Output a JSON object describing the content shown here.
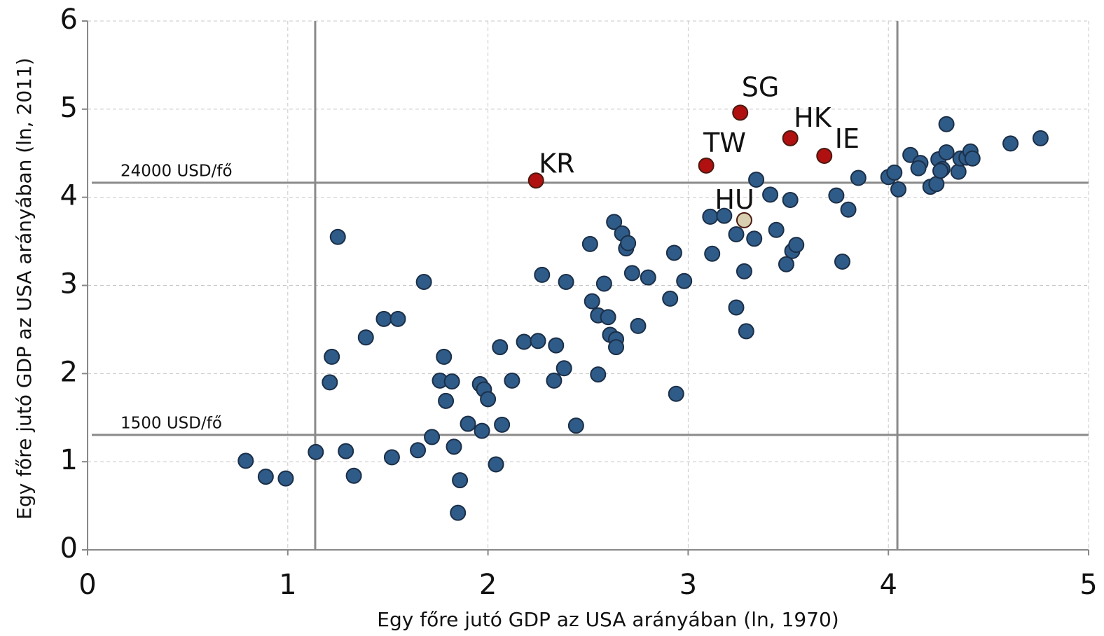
{
  "chart_data": {
    "type": "scatter",
    "x_label": "Egy főre jutó GDP az USA arányában (ln, 1970)",
    "y_label": "Egy főre jutó GDP az USA arányában (ln, 2011)",
    "xlim": [
      0,
      5
    ],
    "ylim": [
      0,
      6
    ],
    "xticks": [
      0,
      1,
      2,
      3,
      4,
      5
    ],
    "yticks": [
      0,
      1,
      2,
      3,
      4,
      5,
      6
    ],
    "grid": true,
    "color": "#2f5b88",
    "x": [
      0.79,
      0.89,
      0.99,
      1.14,
      1.29,
      1.33,
      1.25,
      1.22,
      1.21,
      1.39,
      1.48,
      1.55,
      1.52,
      1.68,
      1.65,
      1.72,
      1.78,
      1.76,
      1.82,
      1.79,
      1.83,
      1.86,
      1.85,
      1.9,
      1.96,
      1.98,
      2.0,
      1.97,
      2.04,
      2.06,
      2.07,
      2.12,
      2.18,
      2.25,
      2.27,
      2.34,
      2.33,
      2.38,
      2.39,
      2.44,
      2.51,
      2.52,
      2.55,
      2.55,
      2.58,
      2.6,
      2.61,
      2.64,
      2.64,
      2.63,
      2.67,
      2.69,
      2.7,
      2.72,
      2.75,
      2.8,
      2.91,
      2.93,
      2.94,
      2.98,
      3.11,
      3.12,
      3.18,
      3.24,
      3.24,
      3.28,
      3.29,
      3.33,
      3.34,
      3.41,
      3.44,
      3.51,
      3.52,
      3.54,
      3.49,
      3.74,
      3.8,
      3.77,
      3.85,
      4.0,
      4.03,
      4.05,
      4.11,
      4.16,
      4.15,
      4.21,
      4.24,
      4.25,
      4.27,
      4.26,
      4.29,
      4.29,
      4.35,
      4.36,
      4.39,
      4.41,
      4.42,
      4.61,
      4.76
    ],
    "values": [
      1.01,
      0.83,
      0.81,
      1.11,
      1.12,
      0.84,
      3.55,
      2.19,
      1.9,
      2.41,
      2.62,
      2.62,
      1.05,
      3.04,
      1.13,
      1.28,
      2.19,
      1.92,
      1.91,
      1.69,
      1.17,
      0.79,
      0.42,
      1.43,
      1.88,
      1.82,
      1.71,
      1.35,
      0.97,
      2.3,
      1.42,
      1.92,
      2.36,
      2.37,
      3.12,
      2.32,
      1.92,
      2.06,
      3.04,
      1.41,
      3.47,
      2.82,
      2.66,
      1.99,
      3.02,
      2.64,
      2.44,
      2.39,
      2.3,
      3.72,
      3.59,
      3.42,
      3.48,
      3.14,
      2.54,
      3.09,
      2.85,
      3.37,
      1.77,
      3.05,
      3.78,
      3.36,
      3.79,
      3.58,
      2.75,
      3.16,
      2.48,
      3.53,
      4.2,
      4.03,
      3.63,
      3.97,
      3.39,
      3.46,
      3.24,
      4.02,
      3.86,
      3.27,
      4.22,
      4.23,
      4.28,
      4.09,
      4.48,
      4.39,
      4.33,
      4.12,
      4.15,
      4.43,
      4.32,
      4.3,
      4.51,
      4.83,
      4.29,
      4.44,
      4.45,
      4.52,
      4.44,
      4.61,
      4.67
    ],
    "labeled_points": [
      {
        "label": "KR",
        "x": 2.24,
        "y": 4.19,
        "color": "#b01010"
      },
      {
        "label": "TW",
        "x": 3.09,
        "y": 4.36,
        "color": "#b01010"
      },
      {
        "label": "SG",
        "x": 3.26,
        "y": 4.96,
        "color": "#b01010"
      },
      {
        "label": "HK",
        "x": 3.51,
        "y": 4.67,
        "color": "#b01010"
      },
      {
        "label": "IE",
        "x": 3.68,
        "y": 4.47,
        "color": "#b01010"
      },
      {
        "label": "HU",
        "x": 3.28,
        "y": 3.74,
        "color": "#d8cfb0"
      }
    ],
    "reference_lines": [
      {
        "axis": "x",
        "value": 1.137
      },
      {
        "axis": "x",
        "value": 4.045
      },
      {
        "axis": "y",
        "value": 4.165,
        "label": "24000 USD/fő"
      },
      {
        "axis": "y",
        "value": 1.304,
        "label": "1500 USD/fő"
      }
    ]
  }
}
